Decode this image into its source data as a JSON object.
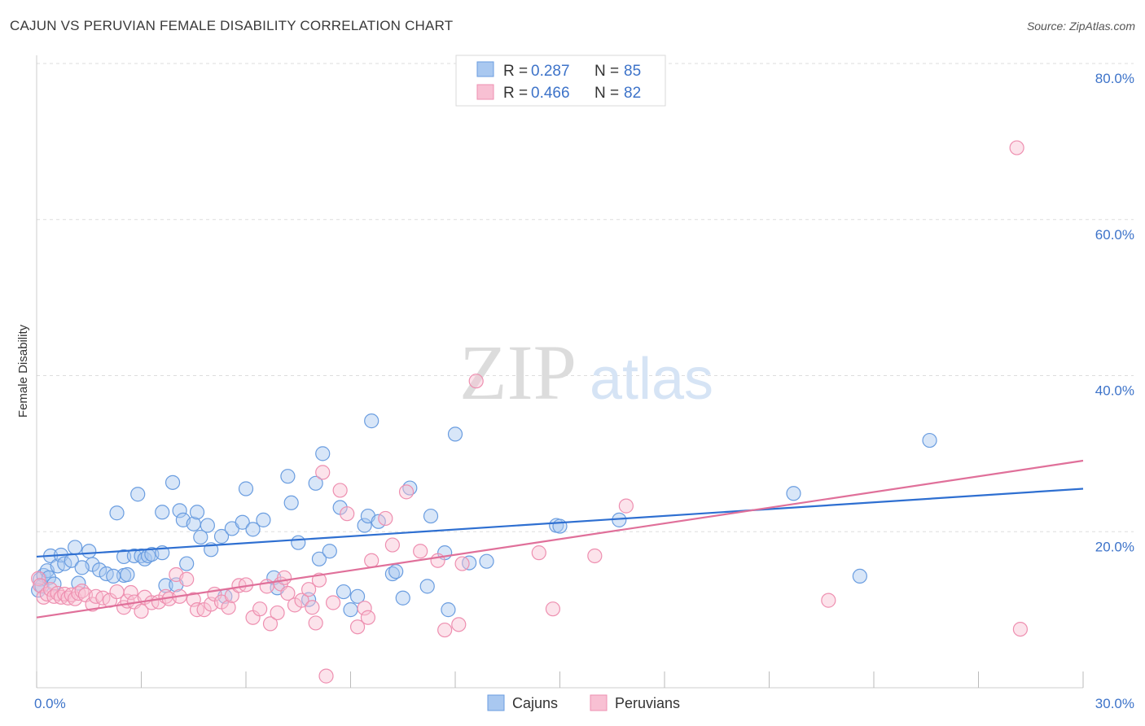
{
  "header": {
    "title": "CAJUN VS PERUVIAN FEMALE DISABILITY CORRELATION CHART",
    "source": "Source: ZipAtlas.com"
  },
  "watermark": {
    "zip": "ZIP",
    "atlas": "atlas"
  },
  "stats": {
    "rows": [
      {
        "r_label": "R = ",
        "r_value": "0.287",
        "n_label": "N = ",
        "n_value": "85",
        "color": "#6a9de0"
      },
      {
        "r_label": "R = ",
        "r_value": "0.466",
        "n_label": "N = ",
        "n_value": "82",
        "color": "#ee8fb0"
      }
    ]
  },
  "colors": {
    "cajun_fill": "#a9c8f0",
    "cajun_stroke": "#6a9de0",
    "cajun_line": "#2e6fd1",
    "peru_fill": "#f8c0d3",
    "peru_stroke": "#ee8fb0",
    "peru_line": "#e0709a",
    "tick_label": "#3d73c9",
    "grid": "#dddddd"
  },
  "chart_data": {
    "type": "scatter",
    "title": "CAJUN VS PERUVIAN FEMALE DISABILITY CORRELATION CHART",
    "ylabel": "Female Disability",
    "xlabel": "",
    "xlim": [
      0,
      30
    ],
    "ylim": [
      0,
      80
    ],
    "y_ticks": [
      {
        "value": 20,
        "label": "20.0%"
      },
      {
        "value": 40,
        "label": "40.0%"
      },
      {
        "value": 60,
        "label": "60.0%"
      },
      {
        "value": 80,
        "label": "80.0%"
      }
    ],
    "x_ticks": [
      {
        "value": 0,
        "label": "0.0%"
      },
      {
        "value": 30,
        "label": "30.0%"
      }
    ],
    "grid": true,
    "legend_position": "bottom-center",
    "series": [
      {
        "name": "Cajuns",
        "trend": {
          "x": [
            0,
            30
          ],
          "y": [
            16.8,
            25.5
          ]
        },
        "points": [
          [
            0.1,
            13.9
          ],
          [
            0.2,
            14.4
          ],
          [
            0.3,
            15.0
          ],
          [
            0.4,
            16.9
          ],
          [
            0.6,
            15.6
          ],
          [
            0.7,
            17.0
          ],
          [
            0.8,
            15.9
          ],
          [
            1.0,
            16.3
          ],
          [
            1.1,
            18.0
          ],
          [
            1.2,
            13.4
          ],
          [
            1.5,
            17.5
          ],
          [
            1.6,
            15.8
          ],
          [
            1.8,
            15.1
          ],
          [
            2.0,
            14.6
          ],
          [
            2.3,
            22.4
          ],
          [
            2.5,
            14.4
          ],
          [
            2.5,
            16.8
          ],
          [
            2.6,
            14.5
          ],
          [
            2.8,
            16.9
          ],
          [
            2.9,
            24.8
          ],
          [
            3.0,
            16.9
          ],
          [
            3.1,
            16.5
          ],
          [
            3.2,
            16.9
          ],
          [
            3.3,
            17.1
          ],
          [
            3.6,
            17.3
          ],
          [
            3.6,
            22.5
          ],
          [
            3.7,
            13.1
          ],
          [
            3.9,
            26.3
          ],
          [
            4.0,
            13.2
          ],
          [
            4.1,
            22.7
          ],
          [
            4.2,
            21.5
          ],
          [
            4.3,
            15.9
          ],
          [
            4.5,
            21.0
          ],
          [
            4.6,
            22.5
          ],
          [
            4.7,
            19.3
          ],
          [
            4.9,
            20.8
          ],
          [
            5.0,
            17.7
          ],
          [
            5.3,
            19.4
          ],
          [
            5.4,
            11.7
          ],
          [
            5.6,
            20.4
          ],
          [
            5.9,
            21.2
          ],
          [
            6.0,
            25.5
          ],
          [
            6.2,
            20.3
          ],
          [
            6.5,
            21.5
          ],
          [
            6.8,
            14.1
          ],
          [
            6.9,
            12.8
          ],
          [
            7.2,
            27.1
          ],
          [
            7.3,
            23.7
          ],
          [
            7.5,
            18.6
          ],
          [
            7.8,
            11.3
          ],
          [
            8.0,
            26.2
          ],
          [
            8.1,
            16.5
          ],
          [
            8.2,
            30.0
          ],
          [
            8.4,
            17.5
          ],
          [
            8.7,
            23.1
          ],
          [
            8.8,
            12.3
          ],
          [
            9.0,
            10.0
          ],
          [
            9.2,
            11.7
          ],
          [
            9.4,
            20.8
          ],
          [
            9.5,
            22.0
          ],
          [
            9.6,
            34.2
          ],
          [
            9.8,
            21.3
          ],
          [
            10.2,
            14.6
          ],
          [
            10.3,
            14.9
          ],
          [
            10.5,
            11.5
          ],
          [
            10.7,
            25.6
          ],
          [
            11.2,
            13.0
          ],
          [
            11.3,
            22.0
          ],
          [
            11.7,
            17.3
          ],
          [
            11.8,
            10.0
          ],
          [
            12.0,
            32.5
          ],
          [
            12.4,
            16.0
          ],
          [
            12.9,
            16.2
          ],
          [
            14.9,
            20.8
          ],
          [
            15.0,
            20.7
          ],
          [
            16.7,
            21.5
          ],
          [
            21.7,
            24.9
          ],
          [
            23.6,
            14.3
          ],
          [
            25.6,
            31.7
          ],
          [
            0.05,
            12.5
          ],
          [
            0.15,
            13.0
          ],
          [
            0.35,
            14.1
          ],
          [
            0.5,
            13.3
          ],
          [
            1.3,
            15.4
          ],
          [
            2.2,
            14.3
          ]
        ]
      },
      {
        "name": "Peruvians",
        "trend": {
          "x": [
            0,
            30
          ],
          "y": [
            9.0,
            29.1
          ]
        },
        "points": [
          [
            0.05,
            14.0
          ],
          [
            0.1,
            13.1
          ],
          [
            0.2,
            11.6
          ],
          [
            0.3,
            12.0
          ],
          [
            0.4,
            12.6
          ],
          [
            0.5,
            11.7
          ],
          [
            0.6,
            12.1
          ],
          [
            0.7,
            11.6
          ],
          [
            0.8,
            12.0
          ],
          [
            0.9,
            11.5
          ],
          [
            1.0,
            11.9
          ],
          [
            1.1,
            11.4
          ],
          [
            1.2,
            12.1
          ],
          [
            1.3,
            12.4
          ],
          [
            1.4,
            11.9
          ],
          [
            1.6,
            10.7
          ],
          [
            1.7,
            11.7
          ],
          [
            1.9,
            11.5
          ],
          [
            2.1,
            11.2
          ],
          [
            2.3,
            12.3
          ],
          [
            2.5,
            10.3
          ],
          [
            2.6,
            11.1
          ],
          [
            2.7,
            12.2
          ],
          [
            2.8,
            11.0
          ],
          [
            3.0,
            9.8
          ],
          [
            3.1,
            11.6
          ],
          [
            3.3,
            10.9
          ],
          [
            3.5,
            11.0
          ],
          [
            3.7,
            11.7
          ],
          [
            3.8,
            11.4
          ],
          [
            4.0,
            14.5
          ],
          [
            4.1,
            11.7
          ],
          [
            4.3,
            13.9
          ],
          [
            4.5,
            11.3
          ],
          [
            4.6,
            10.0
          ],
          [
            4.8,
            10.0
          ],
          [
            5.0,
            10.7
          ],
          [
            5.1,
            12.0
          ],
          [
            5.3,
            11.0
          ],
          [
            5.5,
            10.3
          ],
          [
            5.6,
            11.8
          ],
          [
            5.8,
            13.1
          ],
          [
            6.0,
            13.2
          ],
          [
            6.2,
            9.0
          ],
          [
            6.4,
            10.1
          ],
          [
            6.6,
            13.0
          ],
          [
            6.7,
            8.2
          ],
          [
            6.9,
            9.6
          ],
          [
            7.0,
            13.3
          ],
          [
            7.1,
            14.1
          ],
          [
            7.2,
            12.1
          ],
          [
            7.4,
            10.6
          ],
          [
            7.6,
            11.2
          ],
          [
            7.8,
            12.6
          ],
          [
            7.9,
            10.3
          ],
          [
            8.0,
            8.3
          ],
          [
            8.1,
            13.8
          ],
          [
            8.2,
            27.6
          ],
          [
            8.5,
            10.9
          ],
          [
            8.7,
            25.3
          ],
          [
            8.9,
            22.3
          ],
          [
            9.2,
            7.8
          ],
          [
            9.4,
            10.2
          ],
          [
            9.5,
            9.0
          ],
          [
            9.6,
            16.3
          ],
          [
            10.0,
            21.7
          ],
          [
            10.2,
            18.3
          ],
          [
            10.6,
            25.1
          ],
          [
            11.0,
            17.5
          ],
          [
            11.5,
            16.3
          ],
          [
            11.7,
            7.4
          ],
          [
            12.1,
            8.1
          ],
          [
            12.2,
            15.9
          ],
          [
            12.6,
            39.3
          ],
          [
            14.4,
            17.3
          ],
          [
            14.8,
            10.1
          ],
          [
            16.0,
            16.9
          ],
          [
            16.9,
            23.3
          ],
          [
            22.7,
            11.2
          ],
          [
            28.1,
            69.2
          ],
          [
            28.2,
            7.5
          ],
          [
            8.3,
            1.5
          ]
        ]
      }
    ]
  },
  "legend": {
    "items": [
      {
        "label": "Cajuns",
        "color": "#a9c8f0",
        "border": "#6a9de0"
      },
      {
        "label": "Peruvians",
        "color": "#f8c0d3",
        "border": "#ee8fb0"
      }
    ]
  }
}
